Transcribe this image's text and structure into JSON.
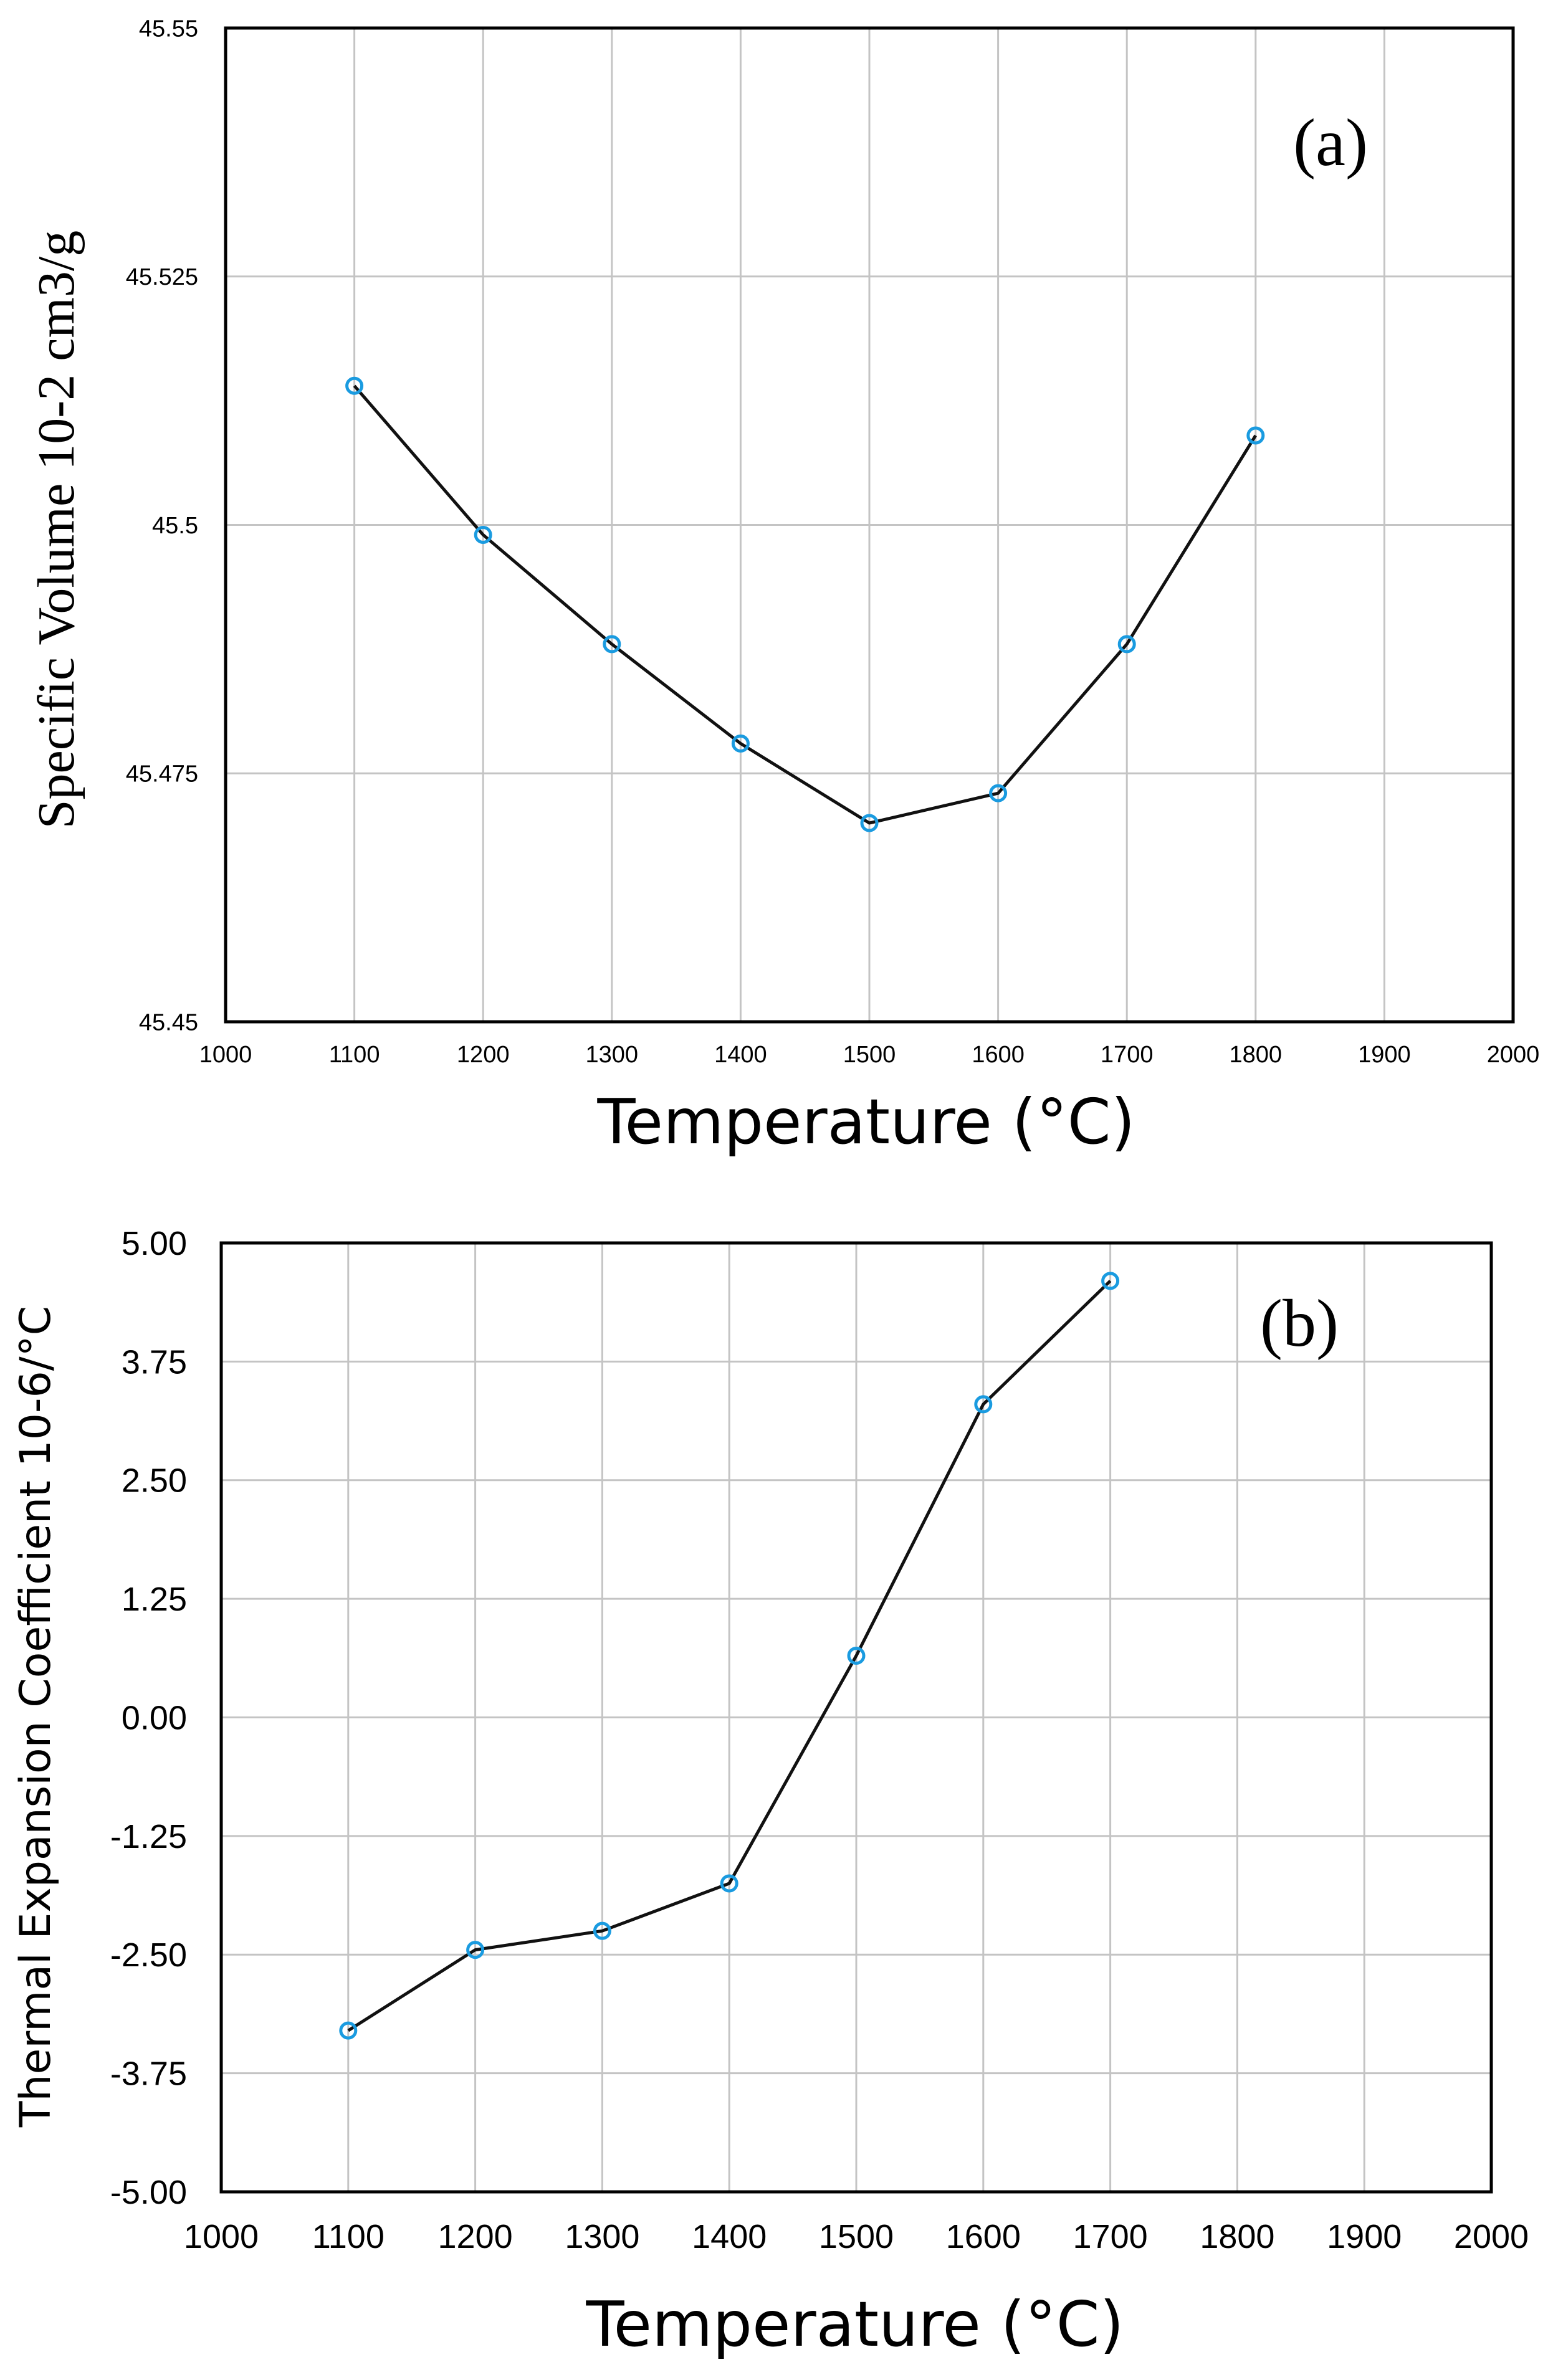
{
  "chart_data": [
    {
      "type": "line",
      "panel_label": "(a)",
      "title": "",
      "xlabel": "Temperature (°C)",
      "ylabel": "Specific Volume 10-2 cm3/g",
      "xlim": [
        1000,
        2000
      ],
      "ylim": [
        45.45,
        45.55
      ],
      "x_ticks": [
        1000,
        1100,
        1200,
        1300,
        1400,
        1500,
        1600,
        1700,
        1800,
        1900,
        2000
      ],
      "x_tick_labels": [
        "1000",
        "1100",
        "1200",
        "1300",
        "1400",
        "1500",
        "1600",
        "1700",
        "1800",
        "1900",
        "2000"
      ],
      "y_ticks": [
        45.45,
        45.475,
        45.5,
        45.525,
        45.55
      ],
      "y_tick_labels": [
        "45.45",
        "45.475",
        "45.5",
        "45.525",
        "45.55"
      ],
      "grid": true,
      "series": [
        {
          "name": "Specific Volume",
          "x": [
            1100,
            1200,
            1300,
            1400,
            1500,
            1600,
            1700,
            1800
          ],
          "values": [
            45.514,
            45.499,
            45.488,
            45.478,
            45.47,
            45.473,
            45.488,
            45.509
          ]
        }
      ],
      "line_color": "#111111",
      "marker_color": "#1a9be0"
    },
    {
      "type": "line",
      "panel_label": "(b)",
      "title": "",
      "xlabel": "Temperature (°C)",
      "ylabel": "Thermal Expansion Coefficient 10-6/°C",
      "xlim": [
        1000,
        2000
      ],
      "ylim": [
        -5,
        5
      ],
      "x_ticks": [
        1000,
        1100,
        1200,
        1300,
        1400,
        1500,
        1600,
        1700,
        1800,
        1900,
        2000
      ],
      "x_tick_labels": [
        "1000",
        "1100",
        "1200",
        "1300",
        "1400",
        "1500",
        "1600",
        "1700",
        "1800",
        "1900",
        "2000"
      ],
      "y_ticks": [
        -5,
        -3.75,
        -2.5,
        -1.25,
        0,
        1.25,
        2.5,
        3.75,
        5
      ],
      "y_tick_labels": [
        "-5.00",
        "-3.75",
        "-2.50",
        "-1.25",
        "0.00",
        "1.25",
        "2.50",
        "3.75",
        "5.00"
      ],
      "grid": true,
      "series": [
        {
          "name": "Thermal Expansion Coefficient",
          "x": [
            1100,
            1200,
            1300,
            1400,
            1500,
            1600,
            1700
          ],
          "values": [
            -3.3,
            -2.45,
            -2.25,
            -1.75,
            0.65,
            3.3,
            4.6
          ]
        }
      ],
      "line_color": "#111111",
      "marker_color": "#1a9be0"
    }
  ]
}
